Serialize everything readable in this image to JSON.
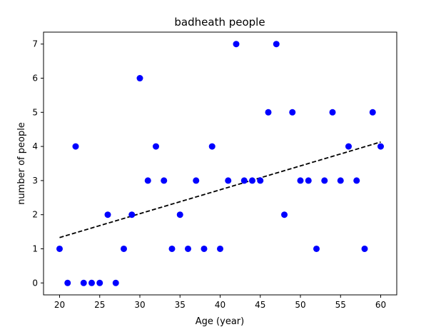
{
  "chart_data": {
    "type": "scatter",
    "title": "badheath people",
    "xlabel": "Age (year)",
    "ylabel": "number of people",
    "xlim": [
      18.0,
      62.0
    ],
    "ylim": [
      -0.35,
      7.35
    ],
    "xticks": [
      20,
      25,
      30,
      35,
      40,
      45,
      50,
      55,
      60
    ],
    "yticks": [
      0,
      1,
      2,
      3,
      4,
      5,
      6,
      7
    ],
    "grid": false,
    "series": [
      {
        "marker": "circle",
        "color": "#0000ff",
        "x": [
          20,
          21,
          22,
          23,
          24,
          25,
          26,
          27,
          28,
          29,
          30,
          31,
          32,
          33,
          34,
          35,
          36,
          37,
          38,
          39,
          40,
          41,
          42,
          43,
          44,
          45,
          46,
          47,
          48,
          49,
          50,
          51,
          52,
          53,
          54,
          55,
          56,
          57,
          58,
          59,
          60
        ],
        "y": [
          1,
          0,
          4,
          0,
          0,
          0,
          2,
          0,
          1,
          2,
          6,
          3,
          4,
          3,
          1,
          2,
          1,
          3,
          1,
          4,
          1,
          3,
          7,
          3,
          3,
          3,
          5,
          7,
          2,
          5,
          3,
          3,
          1,
          3,
          5,
          3,
          4,
          3,
          1,
          5,
          4
        ]
      }
    ],
    "trendline": {
      "style": "dashed",
      "color": "#000000",
      "x": [
        20,
        60
      ],
      "y": [
        1.33,
        4.13
      ]
    }
  }
}
